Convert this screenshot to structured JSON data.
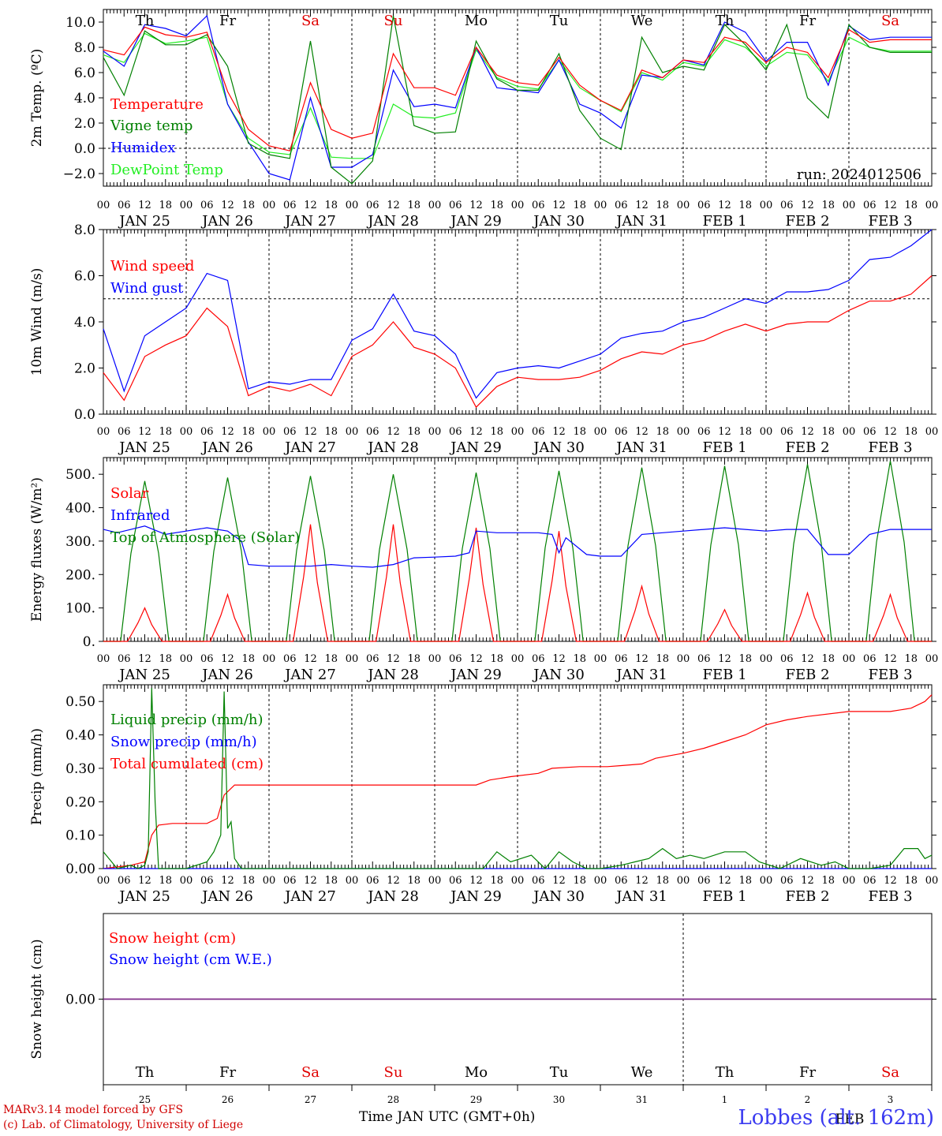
{
  "run_label": "run: 2024012506",
  "credits": [
    "MARv3.14 model forced by GFS",
    "(c) Lab. of Climatology, University of Liege"
  ],
  "site_label": "Lobbes (alt. 162m)",
  "x_axis_title": "Time JAN UTC (GMT+0h)",
  "bottom_month": "FEB",
  "days": [
    "JAN 25",
    "JAN 26",
    "JAN 27",
    "JAN 28",
    "JAN 29",
    "JAN 30",
    "JAN 31",
    "FEB  1",
    "FEB  2",
    "FEB  3"
  ],
  "weekdays": [
    "Th",
    "Fr",
    "Sa",
    "Su",
    "Mo",
    "Tu",
    "We",
    "Th",
    "Fr",
    "Sa"
  ],
  "weekend_color": "#e00000",
  "day_numbers": [
    "25",
    "26",
    "27",
    "28",
    "29",
    "30",
    "31",
    "1",
    "2",
    "3"
  ],
  "hour_ticks": [
    "00",
    "06",
    "12",
    "18"
  ],
  "final_hour": "00",
  "colors": {
    "red": "#ff0000",
    "green": "#008000",
    "blue": "#0000ff",
    "lightgreen": "#22ee22",
    "purple": "#7b2d8b"
  },
  "chart_data": [
    {
      "type": "line",
      "ylabel": "2m Temp. (ºC)",
      "ylim": [
        -3,
        11
      ],
      "yticks": [
        -2,
        0,
        2,
        4,
        6,
        8,
        10
      ],
      "ytick_labels": [
        "−2.0",
        "0.0",
        "2.0",
        "4.0",
        "6.0",
        "8.0",
        "10.0"
      ],
      "refline": 0,
      "x_unit": "hours since JAN 25 00 UTC",
      "series": [
        {
          "name": "Temperature",
          "color": "red",
          "x": [
            0,
            6,
            12,
            18,
            24,
            30,
            36,
            42,
            48,
            54,
            60,
            66,
            72,
            78,
            84,
            90,
            96,
            102,
            108,
            114,
            120,
            126,
            132,
            138,
            144,
            150,
            156,
            162,
            168,
            174,
            180,
            186,
            192,
            198,
            204,
            210,
            216,
            222,
            228,
            234,
            240
          ],
          "y": [
            7.8,
            7.4,
            9.6,
            9.0,
            8.8,
            9.2,
            4.5,
            1.5,
            0.2,
            -0.2,
            5.2,
            1.5,
            0.8,
            1.2,
            7.5,
            4.8,
            4.8,
            4.2,
            8.0,
            5.8,
            5.2,
            5.0,
            7.2,
            5.0,
            3.8,
            3.0,
            6.2,
            5.6,
            7.0,
            6.8,
            8.8,
            8.4,
            6.8,
            8.0,
            7.6,
            5.6,
            9.4,
            8.4,
            8.6,
            8.6,
            8.6
          ]
        },
        {
          "name": "Vigne temp",
          "color": "green",
          "x": [
            0,
            6,
            12,
            18,
            24,
            30,
            36,
            42,
            48,
            54,
            60,
            66,
            72,
            78,
            84,
            90,
            96,
            102,
            108,
            114,
            120,
            126,
            132,
            138,
            144,
            150,
            156,
            162,
            168,
            174,
            180,
            186,
            192,
            198,
            204,
            210,
            216,
            222,
            228,
            234,
            240
          ],
          "y": [
            7.2,
            4.2,
            9.3,
            8.2,
            8.2,
            9.0,
            6.5,
            0.4,
            -0.5,
            -0.8,
            8.5,
            -1.5,
            -2.8,
            -1.0,
            10.5,
            1.8,
            1.2,
            1.3,
            8.5,
            5.5,
            4.6,
            4.6,
            7.5,
            3.0,
            0.8,
            -0.1,
            8.8,
            6.0,
            6.5,
            6.2,
            9.8,
            8.2,
            6.2,
            9.8,
            4.0,
            2.4,
            9.8,
            8.0,
            7.6,
            7.6,
            7.6
          ]
        },
        {
          "name": "Humidex",
          "color": "blue",
          "x": [
            0,
            6,
            12,
            18,
            24,
            30,
            36,
            42,
            48,
            54,
            60,
            66,
            72,
            78,
            84,
            90,
            96,
            102,
            108,
            114,
            120,
            126,
            132,
            138,
            144,
            150,
            156,
            162,
            168,
            174,
            180,
            186,
            192,
            198,
            204,
            210,
            216,
            222,
            228,
            234,
            240
          ],
          "y": [
            7.7,
            6.5,
            9.8,
            9.5,
            8.9,
            10.5,
            3.5,
            0.5,
            -2.0,
            -2.5,
            4.0,
            -1.5,
            -1.5,
            -0.5,
            6.2,
            3.3,
            3.5,
            3.2,
            8.0,
            4.8,
            4.6,
            4.4,
            7.0,
            3.5,
            2.8,
            1.6,
            5.8,
            5.6,
            7.0,
            6.6,
            10.0,
            9.2,
            6.9,
            8.4,
            8.4,
            5.0,
            9.7,
            8.6,
            8.8,
            8.8,
            8.8
          ]
        },
        {
          "name": "DewPoint Temp",
          "color": "lightgreen",
          "x": [
            0,
            6,
            12,
            18,
            24,
            30,
            36,
            42,
            48,
            54,
            60,
            66,
            72,
            78,
            84,
            90,
            96,
            102,
            108,
            114,
            120,
            126,
            132,
            138,
            144,
            150,
            156,
            162,
            168,
            174,
            180,
            186,
            192,
            198,
            204,
            210,
            216,
            222,
            228,
            234,
            240
          ],
          "y": [
            7.4,
            6.8,
            9.1,
            8.3,
            8.5,
            8.8,
            3.5,
            0.8,
            -0.3,
            -0.5,
            3.2,
            -0.7,
            -0.8,
            -0.8,
            3.5,
            2.5,
            2.4,
            2.8,
            7.8,
            5.6,
            4.9,
            4.7,
            7.0,
            4.8,
            3.8,
            2.9,
            6.0,
            5.4,
            6.8,
            6.5,
            8.6,
            8.0,
            6.5,
            7.6,
            7.4,
            5.3,
            8.8,
            8.0,
            7.7,
            7.7,
            7.7
          ]
        }
      ]
    },
    {
      "type": "line",
      "ylabel": "10m Wind (m/s)",
      "ylim": [
        0,
        8
      ],
      "yticks": [
        0,
        2,
        4,
        6,
        8
      ],
      "ytick_labels": [
        "0.0",
        "2.0",
        "4.0",
        "6.0",
        "8.0"
      ],
      "refline": 5,
      "x_unit": "hours since JAN 25 00 UTC",
      "series": [
        {
          "name": "Wind speed",
          "color": "red",
          "x": [
            0,
            6,
            12,
            18,
            24,
            30,
            36,
            42,
            48,
            54,
            60,
            66,
            72,
            78,
            84,
            90,
            96,
            102,
            108,
            114,
            120,
            126,
            132,
            138,
            144,
            150,
            156,
            162,
            168,
            174,
            180,
            186,
            192,
            198,
            204,
            210,
            216,
            222,
            228,
            234,
            240
          ],
          "y": [
            1.8,
            0.6,
            2.5,
            3.0,
            3.4,
            4.6,
            3.8,
            0.8,
            1.2,
            1.0,
            1.3,
            0.8,
            2.5,
            3.0,
            4.0,
            2.9,
            2.6,
            2.0,
            0.3,
            1.2,
            1.6,
            1.5,
            1.5,
            1.6,
            1.9,
            2.4,
            2.7,
            2.6,
            3.0,
            3.2,
            3.6,
            3.9,
            3.6,
            3.9,
            4.0,
            4.0,
            4.5,
            4.9,
            4.9,
            5.2,
            6.0
          ]
        },
        {
          "name": "Wind gust",
          "color": "blue",
          "x": [
            0,
            6,
            12,
            18,
            24,
            30,
            36,
            42,
            48,
            54,
            60,
            66,
            72,
            78,
            84,
            90,
            96,
            102,
            108,
            114,
            120,
            126,
            132,
            138,
            144,
            150,
            156,
            162,
            168,
            174,
            180,
            186,
            192,
            198,
            204,
            210,
            216,
            222,
            228,
            234,
            240
          ],
          "y": [
            3.7,
            1.0,
            3.4,
            4.0,
            4.6,
            6.1,
            5.8,
            1.1,
            1.4,
            1.3,
            1.5,
            1.5,
            3.2,
            3.7,
            5.2,
            3.6,
            3.4,
            2.6,
            0.7,
            1.8,
            2.0,
            2.1,
            2.0,
            2.3,
            2.6,
            3.3,
            3.5,
            3.6,
            4.0,
            4.2,
            4.6,
            5.0,
            4.8,
            5.3,
            5.3,
            5.4,
            5.8,
            6.7,
            6.8,
            7.3,
            8.0
          ]
        }
      ]
    },
    {
      "type": "line",
      "ylabel": "Energy fluxes (W/m²)",
      "ylim": [
        0,
        550
      ],
      "yticks": [
        0,
        100,
        200,
        300,
        400,
        500
      ],
      "ytick_labels": [
        "0.",
        "100.",
        "200.",
        "300.",
        "400.",
        "500."
      ],
      "refline": null,
      "x_unit": "hours since JAN 25 00 UTC",
      "peaks": {
        "hours": [
          12,
          36,
          60,
          84,
          108,
          132,
          156,
          180,
          204,
          228
        ],
        "solar": [
          100,
          140,
          350,
          350,
          340,
          330,
          165,
          95,
          145,
          140
        ],
        "toa": [
          480,
          490,
          495,
          500,
          505,
          510,
          520,
          525,
          530,
          540
        ]
      },
      "series": [
        {
          "name": "Solar",
          "color": "red"
        },
        {
          "name": "Infrared",
          "color": "blue",
          "x": [
            0,
            4,
            8,
            12,
            18,
            24,
            30,
            36,
            40,
            42,
            48,
            54,
            60,
            66,
            72,
            78,
            84,
            90,
            96,
            102,
            106,
            108,
            114,
            120,
            126,
            130,
            132,
            134,
            140,
            144,
            150,
            156,
            162,
            168,
            174,
            180,
            186,
            192,
            198,
            204,
            210,
            216,
            222,
            228,
            234,
            240
          ],
          "y": [
            335,
            325,
            335,
            345,
            320,
            330,
            340,
            330,
            300,
            230,
            225,
            225,
            225,
            230,
            225,
            222,
            230,
            250,
            252,
            255,
            265,
            330,
            325,
            325,
            325,
            320,
            265,
            310,
            260,
            255,
            255,
            320,
            325,
            330,
            335,
            340,
            335,
            330,
            335,
            335,
            260,
            260,
            320,
            335,
            335,
            335
          ]
        },
        {
          "name": "Top of Atmosphere (Solar)",
          "color": "green"
        }
      ]
    },
    {
      "type": "line",
      "ylabel": "Precip (mm/h)",
      "ylim": [
        0,
        0.55
      ],
      "yticks": [
        0,
        0.1,
        0.2,
        0.3,
        0.4,
        0.5
      ],
      "ytick_labels": [
        "0.00",
        "0.10",
        "0.20",
        "0.30",
        "0.40",
        "0.50"
      ],
      "refline": null,
      "x_unit": "hours since JAN 25 00 UTC",
      "series": [
        {
          "name": "Liquid precip (mm/h)",
          "color": "green",
          "x": [
            0,
            4,
            8,
            10,
            12,
            13,
            14,
            15,
            16,
            18,
            24,
            30,
            32,
            34,
            35,
            36,
            37,
            38,
            40,
            42,
            48,
            60,
            72,
            96,
            110,
            114,
            118,
            124,
            128,
            132,
            136,
            140,
            144,
            150,
            154,
            158,
            162,
            166,
            170,
            174,
            180,
            186,
            190,
            196,
            202,
            208,
            212,
            216,
            222,
            228,
            232,
            236,
            238,
            240
          ],
          "y": [
            0.05,
            0.0,
            0.01,
            0.0,
            0.01,
            0.05,
            0.54,
            0.2,
            0.0,
            0.0,
            0.0,
            0.02,
            0.05,
            0.1,
            0.53,
            0.12,
            0.14,
            0.03,
            0.0,
            0.0,
            0.0,
            0.0,
            0.0,
            0.0,
            0.0,
            0.05,
            0.02,
            0.04,
            0.0,
            0.05,
            0.02,
            0.0,
            0.0,
            0.01,
            0.02,
            0.03,
            0.06,
            0.03,
            0.04,
            0.03,
            0.05,
            0.05,
            0.02,
            0.0,
            0.03,
            0.01,
            0.02,
            0.0,
            0.0,
            0.01,
            0.06,
            0.06,
            0.03,
            0.04
          ]
        },
        {
          "name": "Snow precip (mm/h)",
          "color": "blue",
          "x": [
            0,
            240
          ],
          "y": [
            0,
            0
          ]
        },
        {
          "name": "Total cumulated (cm)",
          "color": "red",
          "x": [
            0,
            8,
            12,
            14,
            16,
            20,
            30,
            33,
            35,
            38,
            48,
            60,
            72,
            84,
            96,
            108,
            112,
            118,
            126,
            130,
            138,
            146,
            150,
            156,
            160,
            168,
            174,
            180,
            186,
            192,
            198,
            204,
            216,
            228,
            234,
            238,
            240
          ],
          "y": [
            0.0,
            0.01,
            0.02,
            0.1,
            0.13,
            0.135,
            0.135,
            0.15,
            0.22,
            0.25,
            0.25,
            0.25,
            0.25,
            0.25,
            0.25,
            0.25,
            0.265,
            0.275,
            0.285,
            0.3,
            0.305,
            0.305,
            0.308,
            0.313,
            0.33,
            0.345,
            0.36,
            0.38,
            0.4,
            0.43,
            0.445,
            0.455,
            0.47,
            0.47,
            0.48,
            0.5,
            0.52
          ]
        }
      ]
    },
    {
      "type": "line",
      "ylabel": "Snow height (cm)",
      "ylim": [
        -1,
        1
      ],
      "yticks": [
        0
      ],
      "ytick_labels": [
        "0.00"
      ],
      "refline": null,
      "x_unit": "hours since JAN 25 00 UTC",
      "series": [
        {
          "name": "Snow height (cm)",
          "color": "red",
          "x": [
            0,
            240
          ],
          "y": [
            0,
            0
          ]
        },
        {
          "name": "Snow height (cm W.E.)",
          "color": "blue",
          "x": [
            0,
            240
          ],
          "y": [
            0,
            0
          ]
        }
      ]
    }
  ]
}
